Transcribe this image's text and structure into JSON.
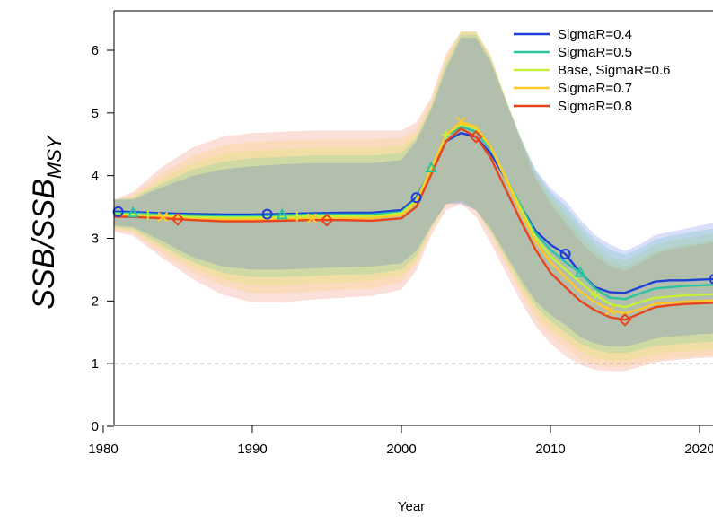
{
  "chart_data": {
    "type": "line",
    "xlabel": "Year",
    "ylabel_main": "SSB/SSB",
    "ylabel_sub": "MSY",
    "xlim": [
      1978,
      2021.5
    ],
    "ylim": [
      0,
      6.5
    ],
    "xticks": [
      1980,
      1990,
      2000,
      2010,
      2020
    ],
    "yticks": [
      0,
      1,
      2,
      3,
      4,
      5,
      6
    ],
    "reference_line": {
      "y": 1,
      "style": "dashed",
      "color": "#bfbfbf"
    },
    "grid": false,
    "legend_position": "top-right",
    "x": [
      1978,
      1980,
      1982,
      1984,
      1986,
      1988,
      1990,
      1992,
      1994,
      1996,
      1998,
      2000,
      2001,
      2002,
      2003,
      2004,
      2005,
      2006,
      2007,
      2008,
      2009,
      2010,
      2011,
      2012,
      2013,
      2014,
      2015,
      2016,
      2017,
      2018,
      2019,
      2020,
      2021,
      2021.5
    ],
    "series": [
      {
        "name": "SigmaR=0.4",
        "color": "#1f3fd6",
        "marker": "circle",
        "marker_years": [
          1981,
          1991,
          2001,
          2011,
          2021
        ],
        "values": [
          3.42,
          3.43,
          3.42,
          3.4,
          3.39,
          3.38,
          3.38,
          3.39,
          3.4,
          3.41,
          3.41,
          3.45,
          3.65,
          4.1,
          4.55,
          4.68,
          4.62,
          4.35,
          3.95,
          3.52,
          3.12,
          2.9,
          2.75,
          2.45,
          2.22,
          2.14,
          2.13,
          2.22,
          2.31,
          2.33,
          2.33,
          2.34,
          2.35,
          2.35
        ],
        "lower": [
          3.22,
          3.22,
          3.18,
          2.95,
          2.7,
          2.55,
          2.5,
          2.5,
          2.52,
          2.54,
          2.55,
          2.6,
          2.8,
          3.2,
          3.55,
          3.55,
          3.45,
          3.15,
          2.75,
          2.35,
          2.0,
          1.78,
          1.62,
          1.42,
          1.32,
          1.27,
          1.27,
          1.33,
          1.4,
          1.43,
          1.45,
          1.47,
          1.48,
          1.48
        ],
        "upper": [
          3.62,
          3.62,
          3.62,
          3.82,
          4.0,
          4.1,
          4.15,
          4.18,
          4.2,
          4.2,
          4.2,
          4.25,
          4.55,
          5.05,
          5.7,
          6.2,
          6.2,
          5.8,
          5.2,
          4.6,
          4.1,
          3.8,
          3.6,
          3.3,
          3.05,
          2.9,
          2.8,
          2.9,
          3.05,
          3.1,
          3.15,
          3.2,
          3.25,
          3.25
        ]
      },
      {
        "name": "SigmaR=0.5",
        "color": "#2bc4a0",
        "marker": "triangle",
        "marker_years": [
          1982,
          1992,
          2002,
          2012
        ],
        "values": [
          3.4,
          3.41,
          3.4,
          3.38,
          3.37,
          3.36,
          3.36,
          3.37,
          3.38,
          3.38,
          3.38,
          3.42,
          3.62,
          4.12,
          4.62,
          4.78,
          4.7,
          4.42,
          3.98,
          3.52,
          3.08,
          2.82,
          2.62,
          2.45,
          2.2,
          2.05,
          2.03,
          2.12,
          2.2,
          2.22,
          2.24,
          2.25,
          2.26,
          2.26
        ],
        "lower": [
          3.2,
          3.2,
          3.15,
          2.88,
          2.62,
          2.45,
          2.38,
          2.38,
          2.4,
          2.42,
          2.43,
          2.5,
          2.72,
          3.18,
          3.55,
          3.58,
          3.45,
          3.12,
          2.7,
          2.28,
          1.92,
          1.68,
          1.5,
          1.32,
          1.22,
          1.17,
          1.17,
          1.22,
          1.28,
          1.3,
          1.32,
          1.34,
          1.35,
          1.35
        ],
        "upper": [
          3.6,
          3.6,
          3.64,
          3.88,
          4.1,
          4.22,
          4.28,
          4.3,
          4.32,
          4.32,
          4.32,
          4.36,
          4.6,
          5.1,
          5.78,
          6.25,
          6.25,
          5.85,
          5.22,
          4.6,
          4.08,
          3.75,
          3.52,
          3.22,
          2.98,
          2.82,
          2.74,
          2.84,
          2.98,
          3.04,
          3.08,
          3.12,
          3.16,
          3.16
        ]
      },
      {
        "name": "Base, SigmaR=0.6",
        "color": "#c6ef3a",
        "marker": "plus",
        "marker_years": [
          1983,
          1993,
          2003,
          2013
        ],
        "values": [
          3.38,
          3.39,
          3.38,
          3.36,
          3.34,
          3.33,
          3.33,
          3.34,
          3.35,
          3.35,
          3.35,
          3.4,
          3.6,
          4.12,
          4.65,
          4.82,
          4.75,
          4.45,
          3.98,
          3.48,
          3.02,
          2.72,
          2.5,
          2.3,
          2.1,
          1.95,
          1.9,
          1.98,
          2.05,
          2.07,
          2.09,
          2.1,
          2.11,
          2.11
        ],
        "lower": [
          3.18,
          3.18,
          3.12,
          2.82,
          2.55,
          2.35,
          2.25,
          2.25,
          2.28,
          2.3,
          2.32,
          2.4,
          2.65,
          3.15,
          3.55,
          3.6,
          3.45,
          3.1,
          2.65,
          2.2,
          1.82,
          1.56,
          1.38,
          1.2,
          1.1,
          1.05,
          1.05,
          1.1,
          1.15,
          1.18,
          1.2,
          1.22,
          1.23,
          1.23
        ],
        "upper": [
          3.58,
          3.58,
          3.66,
          3.95,
          4.2,
          4.35,
          4.4,
          4.42,
          4.44,
          4.44,
          4.44,
          4.48,
          4.66,
          5.15,
          5.85,
          6.3,
          6.3,
          5.9,
          5.25,
          4.62,
          4.05,
          3.7,
          3.45,
          3.15,
          2.9,
          2.72,
          2.65,
          2.75,
          2.9,
          2.96,
          3.0,
          3.04,
          3.08,
          3.08
        ]
      },
      {
        "name": "SigmaR=0.7",
        "color": "#ffc72c",
        "marker": "x",
        "marker_years": [
          1984,
          1994,
          2004,
          2014
        ],
        "values": [
          3.36,
          3.37,
          3.36,
          3.34,
          3.31,
          3.3,
          3.3,
          3.31,
          3.32,
          3.32,
          3.32,
          3.37,
          3.57,
          4.1,
          4.65,
          4.86,
          4.78,
          4.45,
          3.95,
          3.42,
          2.95,
          2.62,
          2.38,
          2.15,
          1.98,
          1.85,
          1.8,
          1.87,
          1.95,
          1.97,
          1.99,
          2.0,
          2.01,
          2.01
        ],
        "lower": [
          3.16,
          3.16,
          3.08,
          2.75,
          2.45,
          2.25,
          2.12,
          2.12,
          2.15,
          2.18,
          2.2,
          2.3,
          2.58,
          3.12,
          3.52,
          3.62,
          3.45,
          3.05,
          2.58,
          2.12,
          1.72,
          1.45,
          1.25,
          1.08,
          0.98,
          0.95,
          0.95,
          1.0,
          1.05,
          1.08,
          1.1,
          1.12,
          1.13,
          1.13
        ],
        "upper": [
          3.56,
          3.56,
          3.7,
          4.05,
          4.32,
          4.48,
          4.54,
          4.56,
          4.58,
          4.58,
          4.58,
          4.6,
          4.74,
          5.2,
          5.9,
          6.3,
          6.3,
          5.92,
          5.25,
          4.6,
          4.0,
          3.62,
          3.35,
          3.05,
          2.8,
          2.62,
          2.55,
          2.66,
          2.8,
          2.86,
          2.9,
          2.94,
          2.98,
          2.98
        ]
      },
      {
        "name": "SigmaR=0.8",
        "color": "#e8441d",
        "marker": "diamond",
        "marker_years": [
          1985,
          1995,
          2005,
          2015
        ],
        "values": [
          3.34,
          3.35,
          3.34,
          3.32,
          3.29,
          3.27,
          3.27,
          3.28,
          3.29,
          3.29,
          3.28,
          3.32,
          3.5,
          4.02,
          4.55,
          4.75,
          4.62,
          4.28,
          3.78,
          3.28,
          2.82,
          2.45,
          2.22,
          2.0,
          1.85,
          1.74,
          1.7,
          1.8,
          1.9,
          1.93,
          1.95,
          1.96,
          1.97,
          1.98
        ],
        "lower": [
          3.14,
          3.14,
          3.04,
          2.68,
          2.35,
          2.1,
          1.98,
          1.98,
          2.02,
          2.05,
          2.08,
          2.18,
          2.48,
          3.05,
          3.45,
          3.55,
          3.35,
          2.92,
          2.45,
          2.0,
          1.6,
          1.32,
          1.12,
          0.98,
          0.9,
          0.88,
          0.88,
          0.95,
          1.02,
          1.05,
          1.07,
          1.09,
          1.1,
          1.1
        ],
        "upper": [
          3.54,
          3.54,
          3.74,
          4.15,
          4.45,
          4.62,
          4.68,
          4.7,
          4.72,
          4.72,
          4.72,
          4.72,
          4.85,
          5.25,
          5.95,
          6.3,
          6.3,
          5.9,
          5.2,
          4.55,
          3.95,
          3.55,
          3.25,
          2.95,
          2.72,
          2.55,
          2.48,
          2.6,
          2.75,
          2.82,
          2.86,
          2.9,
          2.94,
          2.95
        ]
      }
    ]
  }
}
